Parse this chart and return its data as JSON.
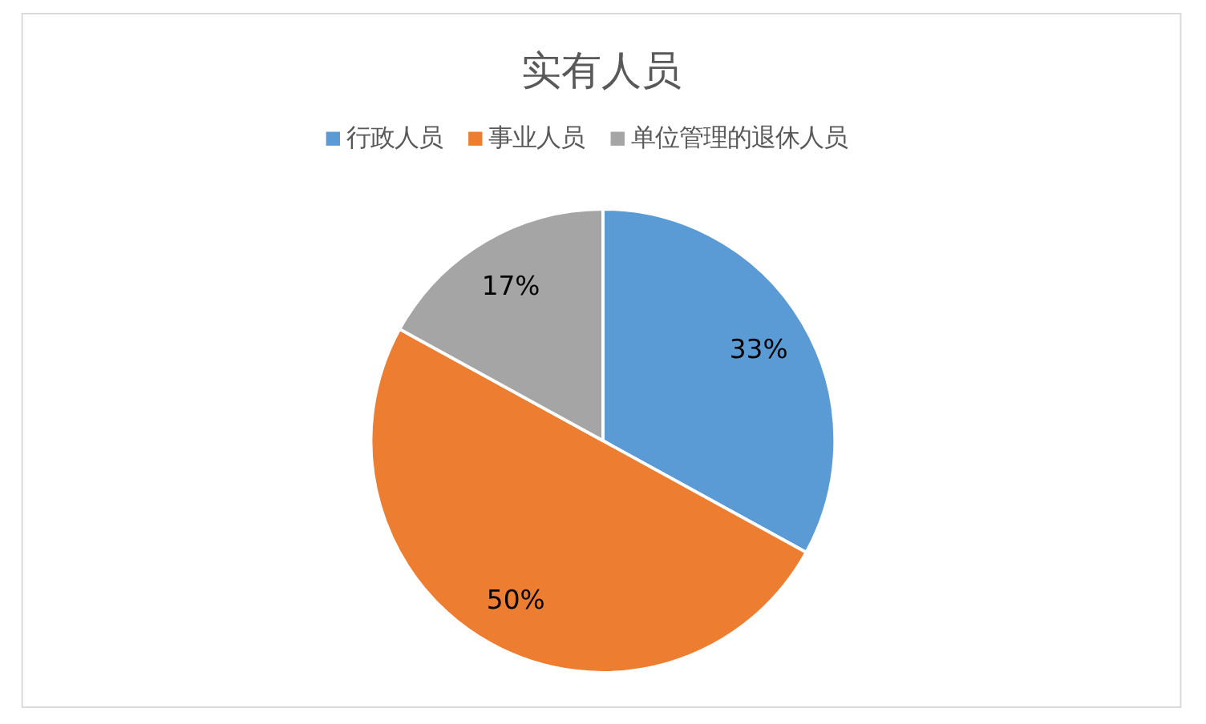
{
  "chart_data": {
    "type": "pie",
    "title": "实有人员",
    "categories": [
      "行政人员",
      "事业人员",
      "单位管理的退休人员"
    ],
    "values": [
      33,
      50,
      17
    ],
    "colors": [
      "#5b9bd5",
      "#ed7d31",
      "#a5a5a5"
    ],
    "value_labels": [
      "33%",
      "50%",
      "17%"
    ],
    "legend": "top"
  }
}
